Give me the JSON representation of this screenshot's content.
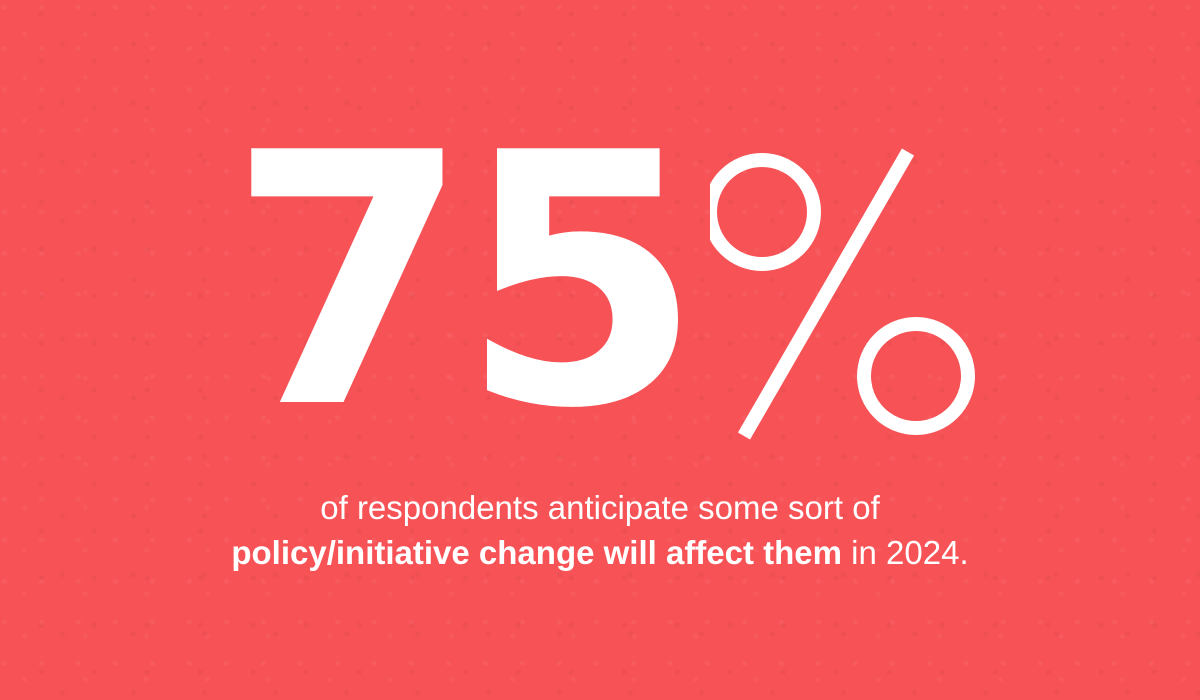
{
  "headline": {
    "number": "75",
    "percent_symbol": "%",
    "percent_icon": "percent-sign-icon"
  },
  "caption": {
    "line1": "of respondents anticipate some sort of",
    "line2_emphasis": "policy/initiative change will affect them",
    "line2_suffix": " in 2024."
  },
  "colors": {
    "background": "#f75256",
    "text": "#ffffff"
  }
}
